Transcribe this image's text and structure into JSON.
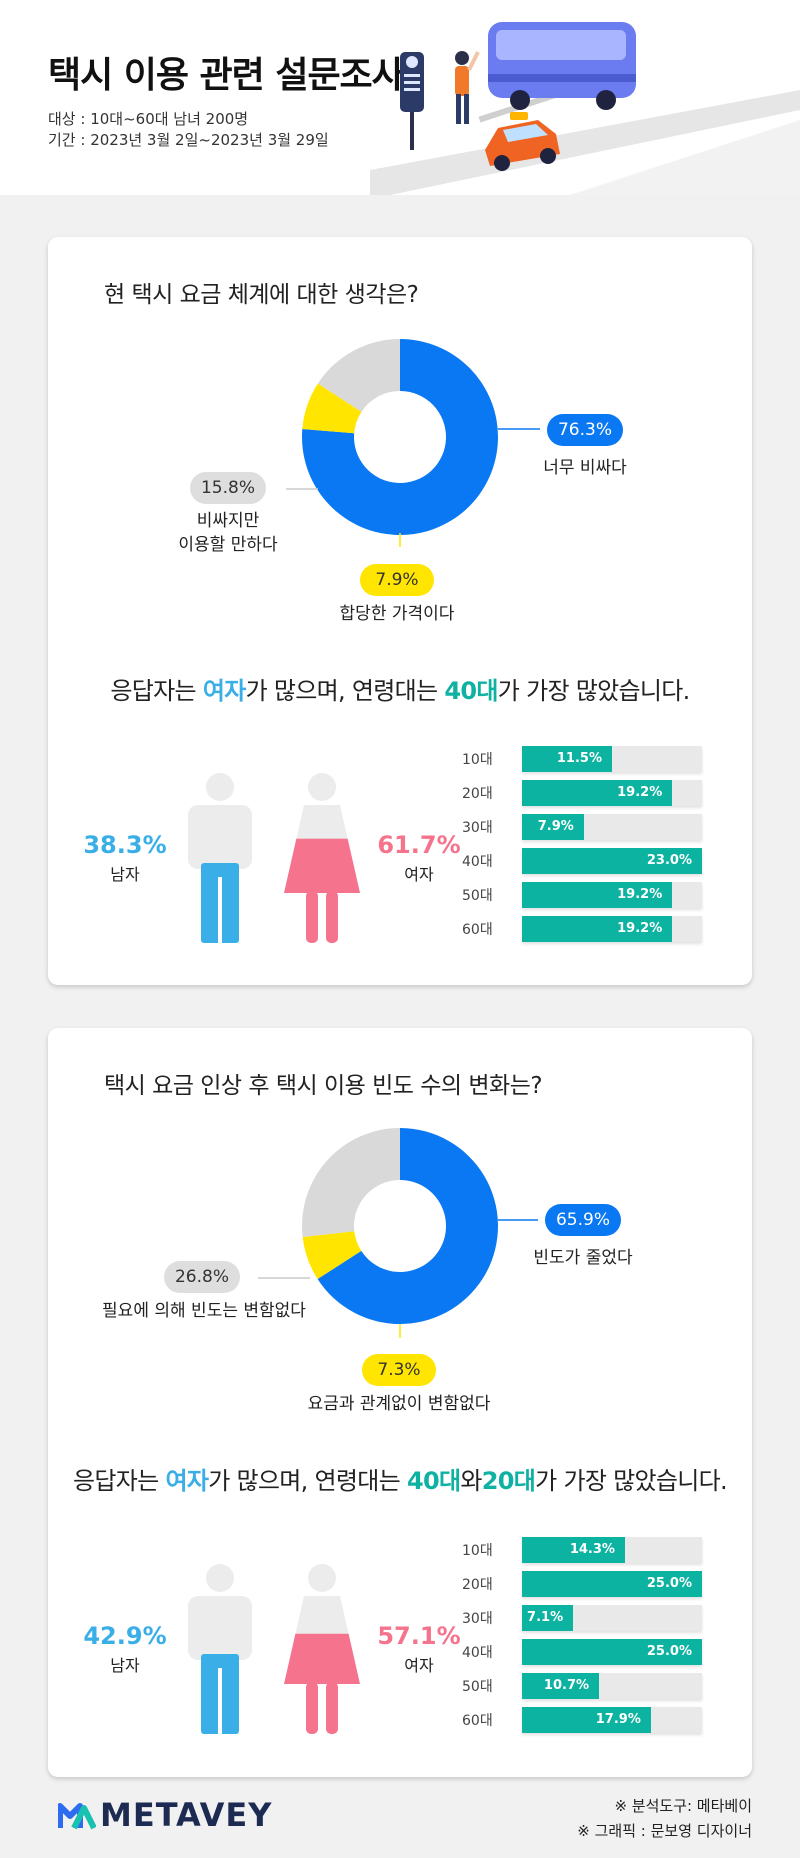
{
  "header": {
    "title": "택시 이용 관련 설문조사",
    "target": "대상 : 10대~60대 남녀 200명",
    "period": "기간 : 2023년 3월 2일~2023년 3월 29일"
  },
  "colors": {
    "blue": "#0a78f2",
    "gray": "#d9d9d9",
    "yellow": "#ffe500",
    "teal": "#0db3a1",
    "male": "#3aaee6",
    "female": "#f5738d"
  },
  "sections": [
    {
      "question": "현 택시 요금 체계에 대한 생각은?",
      "summary": {
        "p1": "응답자는 ",
        "female": "여자",
        "p2": "가 많으며, 연령대는 ",
        "age1": "40대",
        "p3": "",
        "age2": "",
        "p4": "가 가장 많았습니다."
      },
      "male_pct_label": "38.3%",
      "male_label": "남자",
      "female_pct_label": "61.7%",
      "female_label": "여자",
      "female_share": 0.617
    },
    {
      "question": "택시 요금 인상 후 택시 이용 빈도 수의 변화는?",
      "summary": {
        "p1": "응답자는 ",
        "female": "여자",
        "p2": "가 많으며, 연령대는 ",
        "age1": "40대",
        "p3": "와",
        "age2": "20대",
        "p4": "가 가장 많았습니다."
      },
      "male_pct_label": "42.9%",
      "male_label": "남자",
      "female_pct_label": "57.1%",
      "female_label": "여자",
      "female_share": 0.571
    }
  ],
  "chart_data": [
    {
      "type": "pie",
      "title": "현 택시 요금 체계에 대한 생각은?",
      "slices": [
        {
          "label": "너무 비싸다",
          "value": 76.3,
          "display": "76.3%",
          "color": "#0a78f2"
        },
        {
          "label": "합당한 가격이다",
          "value": 7.9,
          "display": "7.9%",
          "color": "#ffe500"
        },
        {
          "label": "비싸지만\n이용할 만하다",
          "value": 15.8,
          "display": "15.8%",
          "color": "#d9d9d9"
        }
      ]
    },
    {
      "type": "bar",
      "orientation": "horizontal",
      "categories": [
        "10대",
        "20대",
        "30대",
        "40대",
        "50대",
        "60대"
      ],
      "values": [
        11.5,
        19.2,
        7.9,
        23.0,
        19.2,
        19.2
      ],
      "labels": [
        "11.5%",
        "19.2%",
        "7.9%",
        "23.0%",
        "19.2%",
        "19.2%"
      ],
      "xlim": [
        0,
        23.0
      ]
    },
    {
      "type": "pie",
      "title": "택시 요금 인상 후 택시 이용 빈도 수의 변화는?",
      "slices": [
        {
          "label": "빈도가 줄었다",
          "value": 65.9,
          "display": "65.9%",
          "color": "#0a78f2"
        },
        {
          "label": "요금과 관계없이 변함없다",
          "value": 7.3,
          "display": "7.3%",
          "color": "#ffe500"
        },
        {
          "label": "필요에 의해 빈도는 변함없다",
          "value": 26.8,
          "display": "26.8%",
          "color": "#d9d9d9"
        }
      ]
    },
    {
      "type": "bar",
      "orientation": "horizontal",
      "categories": [
        "10대",
        "20대",
        "30대",
        "40대",
        "50대",
        "60대"
      ],
      "values": [
        14.3,
        25.0,
        7.1,
        25.0,
        10.7,
        17.9
      ],
      "labels": [
        "14.3%",
        "25.0%",
        "7.1%",
        "25.0%",
        "10.7%",
        "17.9%"
      ],
      "xlim": [
        0,
        25.0
      ]
    }
  ],
  "footer": {
    "tool": "※ 분석도구: 메타베이",
    "graphic": "※ 그래픽 : 문보영 디자이너",
    "logo": "METAVEY"
  }
}
